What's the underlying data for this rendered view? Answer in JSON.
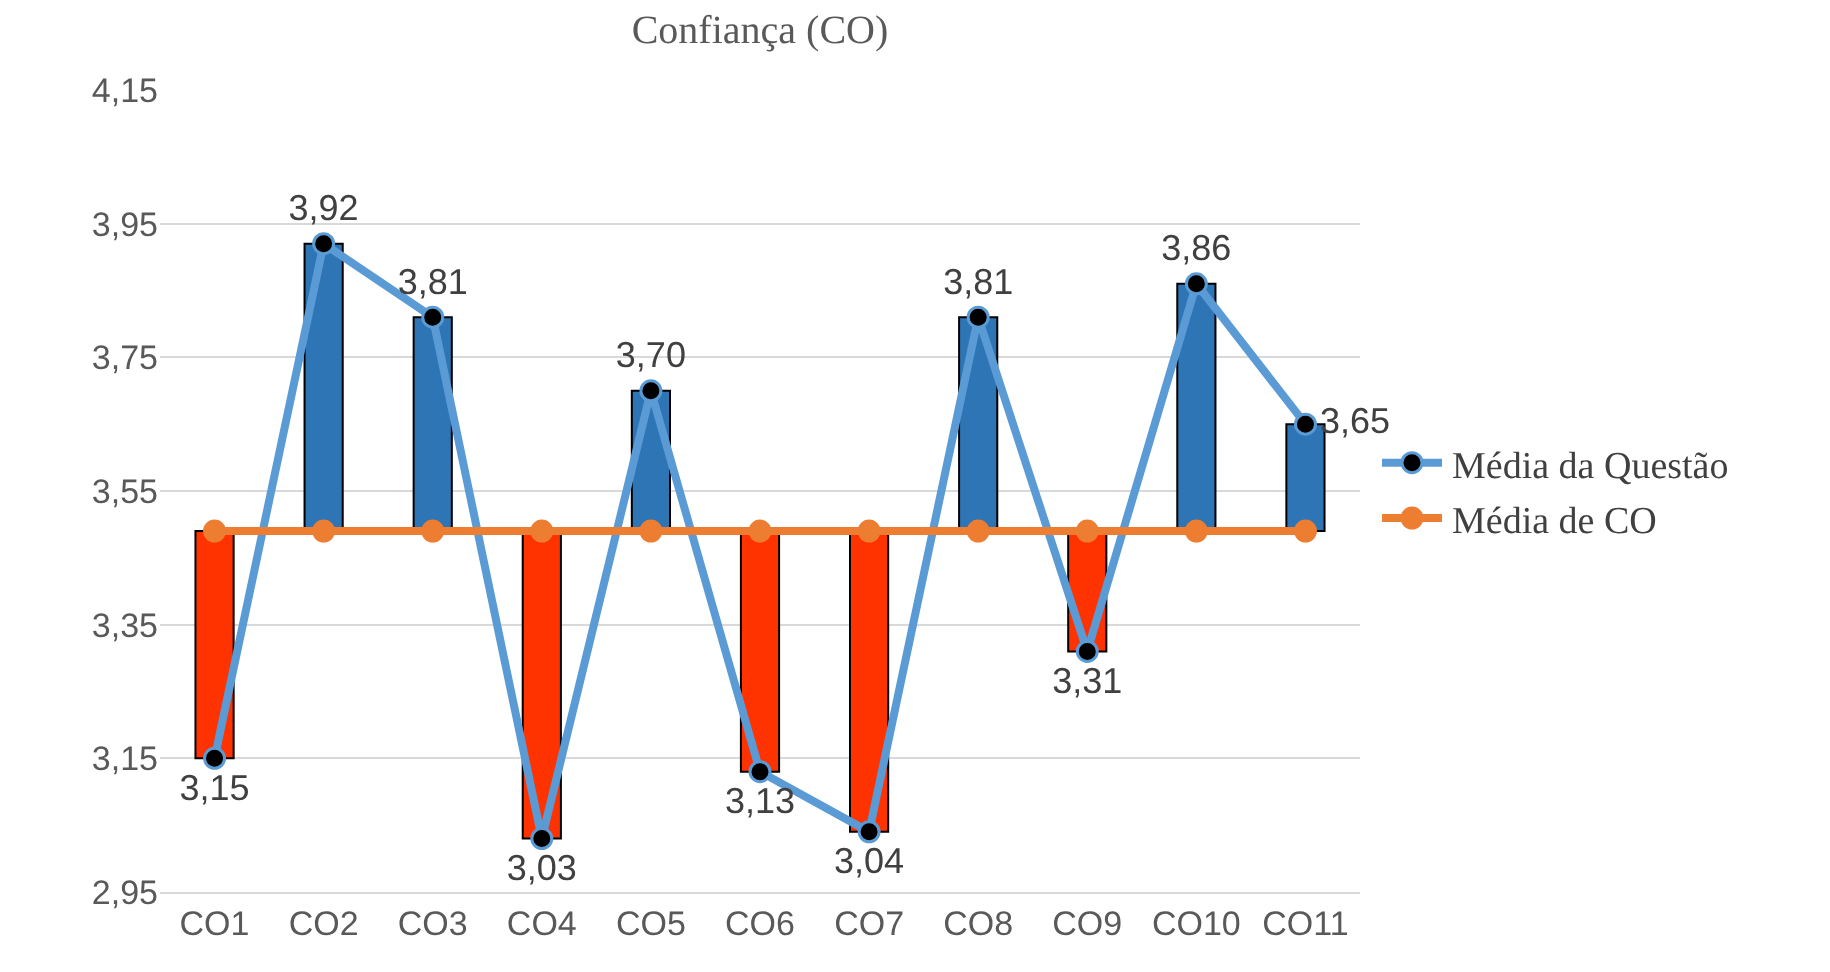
{
  "chart_data": {
    "type": "line",
    "title": "Confiança (CO)",
    "categories": [
      "CO1",
      "CO2",
      "CO3",
      "CO4",
      "CO5",
      "CO6",
      "CO7",
      "CO8",
      "CO9",
      "CO10",
      "CO11"
    ],
    "series": [
      {
        "type": "bar",
        "colors": [
          "#ff3300",
          "#2e75b6",
          "#2e75b6",
          "#ff3300",
          "#2e75b6",
          "#ff3300",
          "#ff3300",
          "#2e75b6",
          "#ff3300",
          "#2e75b6",
          "#2e75b6"
        ],
        "base": [
          3.49,
          3.49,
          3.49,
          3.49,
          3.49,
          3.49,
          3.49,
          3.49,
          3.49,
          3.49,
          3.49
        ],
        "values": [
          -0.34,
          0.43,
          0.32,
          -0.46,
          0.21,
          -0.36,
          -0.45,
          0.32,
          -0.18,
          0.37,
          0.16
        ]
      },
      {
        "type": "line",
        "name": "Média da Questão",
        "color": "#5b9bd5",
        "values": [
          3.15,
          3.92,
          3.81,
          3.03,
          3.7,
          3.13,
          3.04,
          3.81,
          3.31,
          3.86,
          3.65
        ],
        "value_labels": [
          "3,15",
          "3,92",
          "3,81",
          "3,03",
          "3,70",
          "3,13",
          "3,04",
          "3,81",
          "3,31",
          "3,86",
          "3,65"
        ]
      },
      {
        "name": "Média de CO",
        "color": "#ed7d31",
        "values": [
          3.49,
          3.49,
          3.49,
          3.49,
          3.49,
          3.49,
          3.49,
          3.49,
          3.49,
          3.49,
          3.49
        ]
      }
    ],
    "ylim": [
      2.95,
      4.15
    ],
    "yticks": [
      {
        "value": 2.95,
        "label": "2,95"
      },
      {
        "value": 3.15,
        "label": "3,15"
      },
      {
        "value": 3.35,
        "label": "3,35"
      },
      {
        "value": 3.55,
        "label": "3,55"
      },
      {
        "value": 3.75,
        "label": "3,75"
      },
      {
        "value": 3.95,
        "label": "3,95"
      },
      {
        "value": 4.15,
        "label": "4,15"
      }
    ],
    "grid": "y",
    "legend": "right",
    "marker": "circle",
    "line_style": "solid"
  }
}
